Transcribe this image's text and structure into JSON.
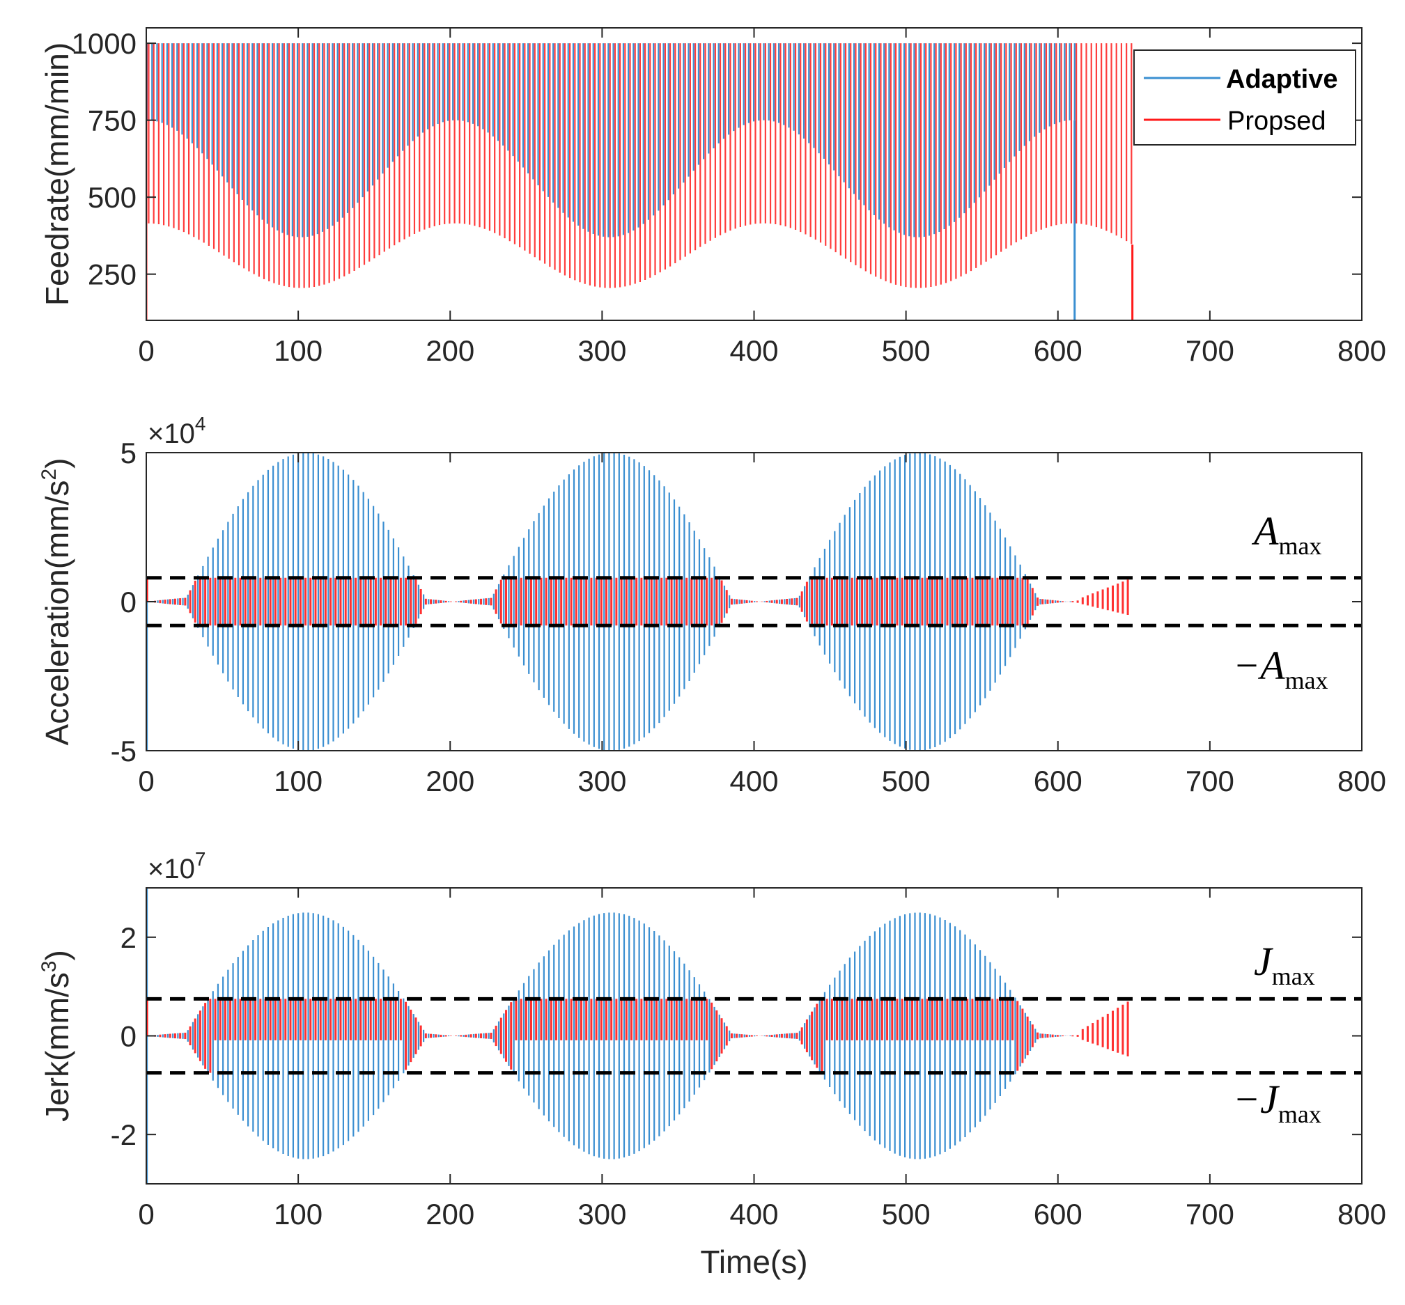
{
  "chart_data": [
    {
      "type": "line",
      "id": "feedrate",
      "ylabel": "Feedrate(mm/min)",
      "xlabel": "",
      "xlim": [
        0,
        800
      ],
      "ylim": [
        100,
        1050
      ],
      "xticks": [
        0,
        100,
        200,
        300,
        400,
        500,
        600,
        700,
        800
      ],
      "yticks": [
        250,
        500,
        750,
        1000
      ],
      "exponent_label": "",
      "legend": {
        "position": "top-right",
        "entries": [
          "Adaptive",
          "Propsed"
        ]
      },
      "series": [
        {
          "name": "Adaptive",
          "color": "#3b8fd1",
          "description_values": {
            "peak": 1000,
            "min_envelope_mean": 560,
            "min_envelope_amplitude": 190,
            "period_s": 203,
            "phase_min_at_s": 102,
            "end_time_s": 611
          }
        },
        {
          "name": "Propsed",
          "color": "#ff1a1a",
          "description_values": {
            "peak": 1000,
            "min_envelope_mean": 310,
            "min_envelope_amplitude": 105,
            "period_s": 203,
            "phase_min_at_s": 102,
            "end_time_s": 649
          }
        }
      ]
    },
    {
      "type": "line",
      "id": "acceleration",
      "ylabel": "Acceleration(mm/s",
      "ylabel_sup": "2",
      "ylabel_close": ")",
      "xlabel": "",
      "xlim": [
        0,
        800
      ],
      "ylim": [
        -5,
        5
      ],
      "xticks": [
        0,
        100,
        200,
        300,
        400,
        500,
        600,
        700,
        800
      ],
      "yticks": [
        -5,
        0,
        5
      ],
      "exponent_label": "×10",
      "exponent_power": "4",
      "limit": 0.8,
      "annotations": {
        "upper": "A",
        "lower": "−A",
        "subscript": "max"
      },
      "series": [
        {
          "name": "Adaptive",
          "color": "#3b8fd1",
          "amplitude_peak": 5.0,
          "lobe_centers_s": [
            105,
            306,
            508
          ],
          "lobe_half_width_s": 80,
          "end_time_s": 611
        },
        {
          "name": "Propsed",
          "color": "#ff1a1a",
          "clip": 0.8,
          "end_time_s": 649
        }
      ]
    },
    {
      "type": "line",
      "id": "jerk",
      "ylabel": "Jerk(mm/s",
      "ylabel_sup": "3",
      "ylabel_close": ")",
      "xlabel": "Time(s)",
      "xlim": [
        0,
        800
      ],
      "ylim": [
        -3,
        3
      ],
      "xticks": [
        0,
        100,
        200,
        300,
        400,
        500,
        600,
        700,
        800
      ],
      "yticks": [
        -2,
        0,
        2
      ],
      "exponent_label": "×10",
      "exponent_power": "7",
      "limit": 0.75,
      "annotations": {
        "upper": "J",
        "lower": "−J",
        "subscript": "max"
      },
      "series": [
        {
          "name": "Adaptive",
          "color": "#3b8fd1",
          "amplitude_peak": 2.5,
          "lobe_centers_s": [
            105,
            306,
            508
          ],
          "lobe_half_width_s": 80,
          "end_time_s": 611
        },
        {
          "name": "Propsed",
          "color": "#ff1a1a",
          "clip": 0.75,
          "end_time_s": 649
        }
      ]
    }
  ]
}
